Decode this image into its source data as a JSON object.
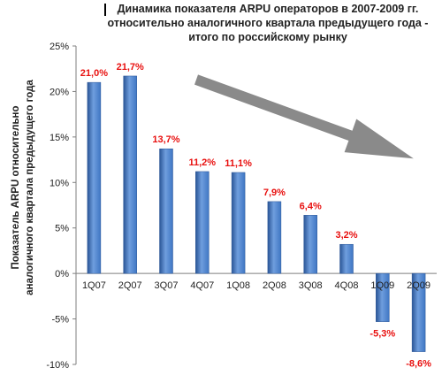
{
  "chart_data": {
    "type": "bar",
    "title": "Динамика показателя ARPU операторов в 2007-2009 гг. относительно аналогичного квартала предыдущего года - итого по российскому рынку",
    "ylabel_line1": "Показатель ARPU относительно",
    "ylabel_line2": "аналогичного квартала предыдущего года",
    "xlabel": "",
    "categories": [
      "1Q07",
      "2Q07",
      "3Q07",
      "4Q07",
      "1Q08",
      "2Q08",
      "3Q08",
      "4Q08",
      "1Q09",
      "2Q09"
    ],
    "values": [
      21.0,
      21.7,
      13.7,
      11.2,
      11.1,
      7.9,
      6.4,
      3.2,
      -5.3,
      -8.6
    ],
    "value_labels": [
      "21,0%",
      "21,7%",
      "13,7%",
      "11,2%",
      "11,1%",
      "7,9%",
      "6,4%",
      "3,2%",
      "-5,3%",
      "-8,6%"
    ],
    "ylim": [
      -10,
      25
    ],
    "yticks": [
      25,
      20,
      15,
      10,
      5,
      0,
      -5,
      -10
    ],
    "ytick_labels": [
      "25%",
      "20%",
      "15%",
      "10%",
      "5%",
      "0%",
      "-5%",
      "-10%"
    ],
    "grid": false,
    "legend": "none",
    "colors": {
      "bar": "#3f76c3",
      "bar_dark": "#2a5596",
      "bar_light": "#6f9ede",
      "data_label": "#e8100f",
      "arrow": "#8a8a8a"
    }
  }
}
